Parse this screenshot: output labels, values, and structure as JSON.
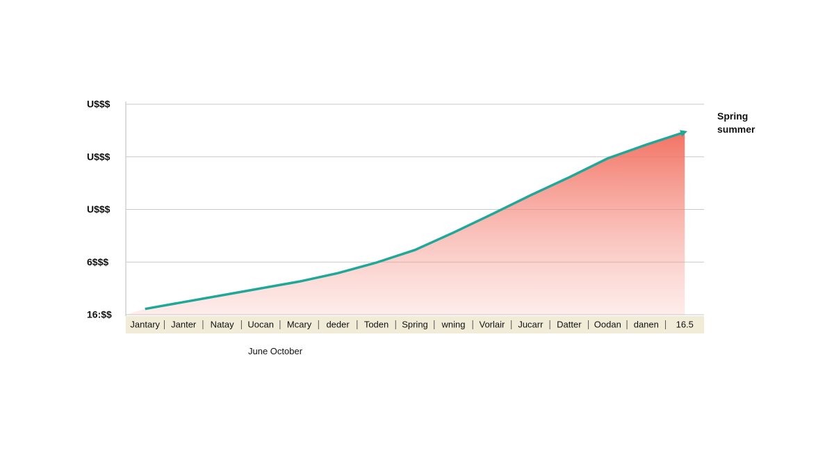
{
  "chart_data": {
    "type": "area",
    "annotation": "Spring summer",
    "x_label": "June October",
    "categories": [
      "Jantary",
      "Janter",
      "Natay",
      "Uocan",
      "Mcary",
      "deder",
      "Toden",
      "Spring",
      "wning",
      "Vorlair",
      "Jucarr",
      "Datter",
      "Oodan",
      "danen",
      "16.5"
    ],
    "values": [
      0.11,
      0.24,
      0.37,
      0.5,
      0.63,
      0.79,
      0.99,
      1.23,
      1.56,
      1.91,
      2.27,
      2.61,
      2.97,
      3.23,
      3.47
    ],
    "color": "#1fa89a",
    "area_color": "#f26b5b",
    "ylim": [
      0,
      4
    ],
    "yticks": [
      {
        "value": 0,
        "label": "16:$$"
      },
      {
        "value": 1,
        "label": "6$$$"
      },
      {
        "value": 2,
        "label": "U$$$"
      },
      {
        "value": 3,
        "label": "U$$$"
      },
      {
        "value": 4,
        "label": "U$$$"
      }
    ],
    "grid": true
  }
}
